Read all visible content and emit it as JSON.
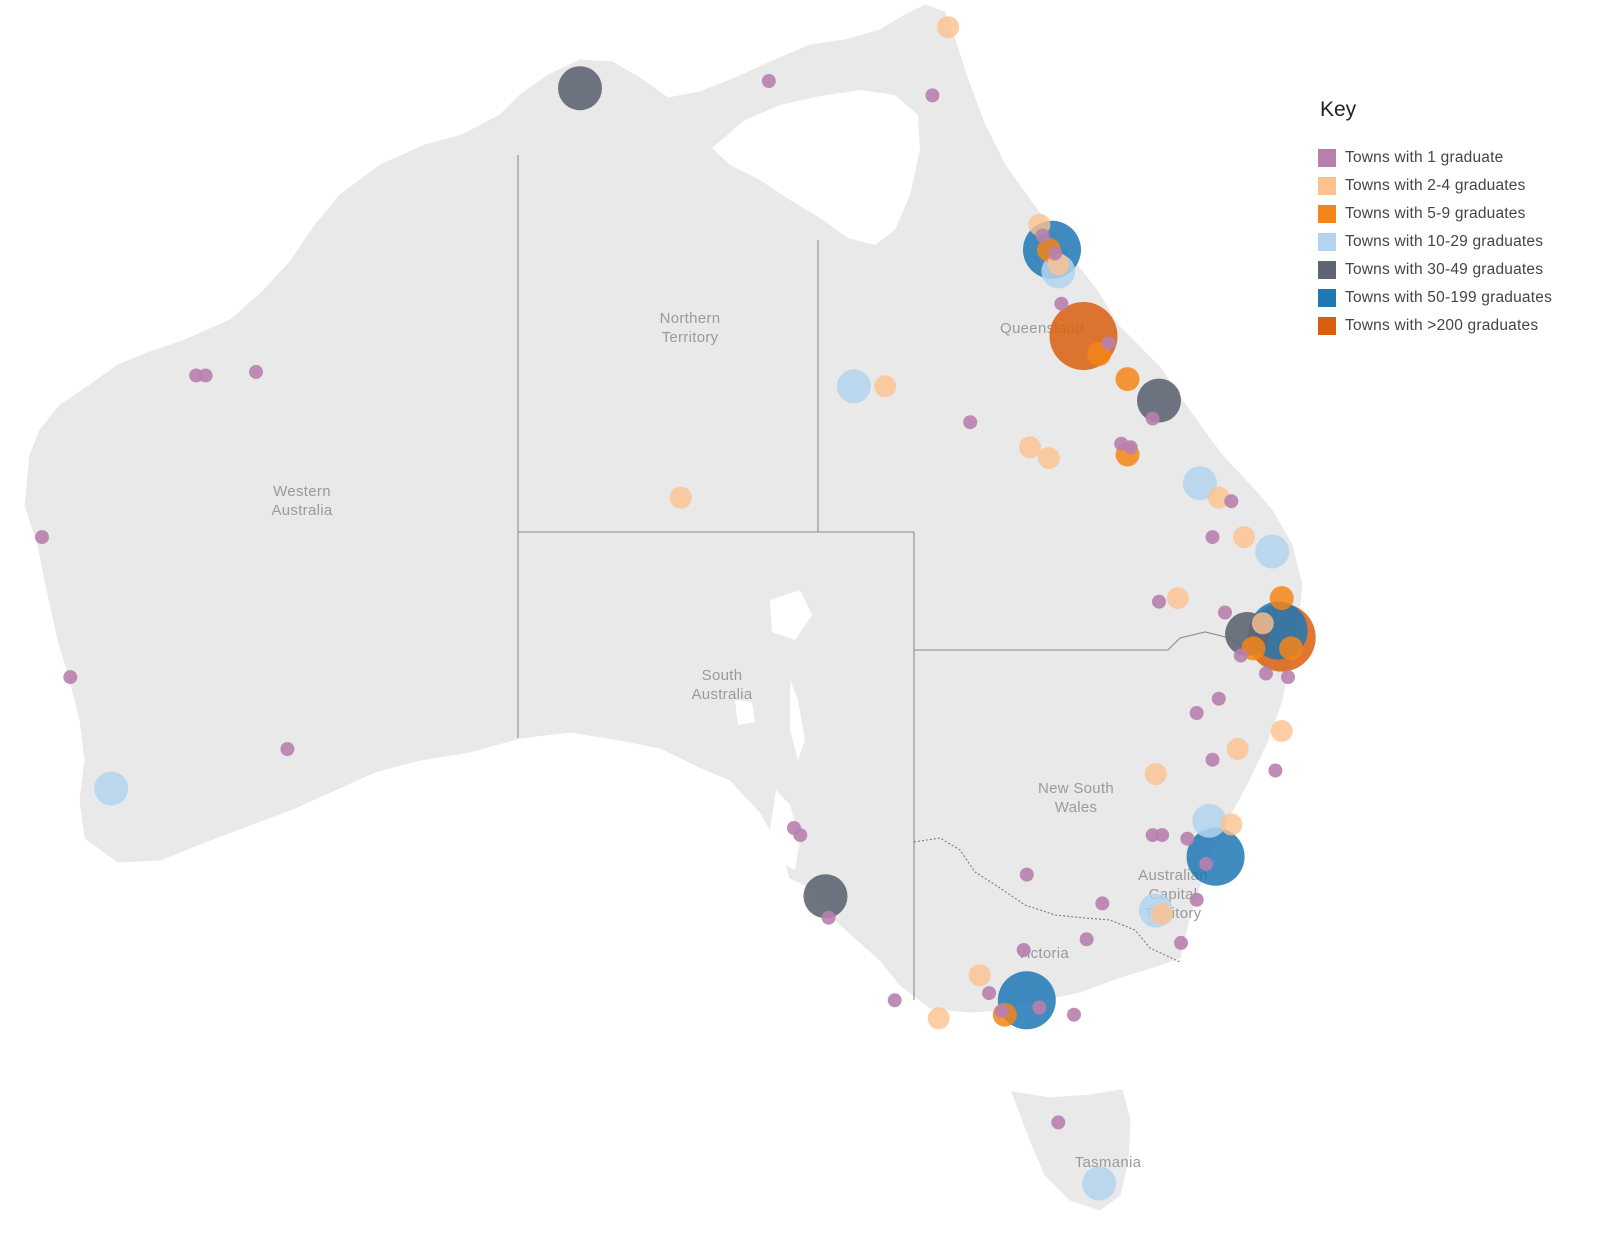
{
  "legend": {
    "title": "Key",
    "items": [
      {
        "label": "Towns with 1 graduate",
        "color": "#b87fae"
      },
      {
        "label": "Towns with 2-4 graduates",
        "color": "#fcc28e"
      },
      {
        "label": "Towns with 5-9 graduates",
        "color": "#f58518"
      },
      {
        "label": "Towns with 10-29 graduates",
        "color": "#b3d3ee"
      },
      {
        "label": "Towns with 30-49 graduates",
        "color": "#5f6573"
      },
      {
        "label": "Towns with 50-199 graduates",
        "color": "#1f77b4"
      },
      {
        "label": "Towns with >200 graduates",
        "color": "#d95f0e"
      }
    ]
  },
  "regions": {
    "wa": [
      "Western",
      "Australia"
    ],
    "nt": [
      "Northern",
      "Territory"
    ],
    "qld": [
      "Queensland"
    ],
    "sa": [
      "South",
      "Australia"
    ],
    "nsw": [
      "New South",
      "Wales"
    ],
    "act": [
      "Australian",
      "Capital",
      "Territory"
    ],
    "vic": [
      "Victoria"
    ],
    "tas": [
      "Tasmania"
    ]
  },
  "chart_data": {
    "type": "scatter",
    "description_units": "graduate count category per town (category index into legend.items)",
    "towns": [
      {
        "lon": 130.8,
        "lat": -12.4,
        "cat": 4
      },
      {
        "lon": 151.0,
        "lat": -33.8,
        "cat": 5
      },
      {
        "lon": 145.0,
        "lat": -37.8,
        "cat": 5
      },
      {
        "lon": 153.0,
        "lat": -27.5,
        "cat": 5
      },
      {
        "lon": 145.8,
        "lat": -16.9,
        "cat": 5
      },
      {
        "lon": 146.8,
        "lat": -19.3,
        "cat": 6
      },
      {
        "lon": 153.1,
        "lat": -27.7,
        "cat": 6
      },
      {
        "lon": 138.6,
        "lat": -34.9,
        "cat": 4
      },
      {
        "lon": 149.2,
        "lat": -21.1,
        "cat": 4
      },
      {
        "lon": 152.0,
        "lat": -27.6,
        "cat": 4
      },
      {
        "lon": 115.9,
        "lat": -31.9,
        "cat": 3
      },
      {
        "lon": 139.5,
        "lat": -20.7,
        "cat": 3
      },
      {
        "lon": 147.3,
        "lat": -42.9,
        "cat": 3
      },
      {
        "lon": 149.1,
        "lat": -35.3,
        "cat": 3
      },
      {
        "lon": 150.5,
        "lat": -23.4,
        "cat": 3
      },
      {
        "lon": 152.8,
        "lat": -25.3,
        "cat": 3
      },
      {
        "lon": 146.0,
        "lat": -17.5,
        "cat": 3
      },
      {
        "lon": 150.8,
        "lat": -32.8,
        "cat": 3
      },
      {
        "lon": 144.3,
        "lat": -38.2,
        "cat": 2
      },
      {
        "lon": 148.2,
        "lat": -20.5,
        "cat": 2
      },
      {
        "lon": 148.2,
        "lat": -22.6,
        "cat": 2
      },
      {
        "lon": 153.1,
        "lat": -26.6,
        "cat": 2
      },
      {
        "lon": 153.4,
        "lat": -28.0,
        "cat": 2
      },
      {
        "lon": 152.2,
        "lat": -28.0,
        "cat": 2
      },
      {
        "lon": 147.3,
        "lat": -19.8,
        "cat": 2
      },
      {
        "lon": 145.7,
        "lat": -16.9,
        "cat": 2
      },
      {
        "lon": 142.5,
        "lat": -10.7,
        "cat": 1
      },
      {
        "lon": 145.4,
        "lat": -16.2,
        "cat": 1
      },
      {
        "lon": 140.5,
        "lat": -20.7,
        "cat": 1
      },
      {
        "lon": 134.0,
        "lat": -23.8,
        "cat": 1
      },
      {
        "lon": 145.1,
        "lat": -22.4,
        "cat": 1
      },
      {
        "lon": 145.7,
        "lat": -22.7,
        "cat": 1
      },
      {
        "lon": 151.1,
        "lat": -23.8,
        "cat": 1
      },
      {
        "lon": 151.9,
        "lat": -24.9,
        "cat": 1
      },
      {
        "lon": 149.8,
        "lat": -26.6,
        "cat": 1
      },
      {
        "lon": 153.1,
        "lat": -30.3,
        "cat": 1
      },
      {
        "lon": 151.7,
        "lat": -30.8,
        "cat": 1
      },
      {
        "lon": 149.1,
        "lat": -31.5,
        "cat": 1
      },
      {
        "lon": 151.5,
        "lat": -32.9,
        "cat": 1
      },
      {
        "lon": 149.3,
        "lat": -35.4,
        "cat": 1
      },
      {
        "lon": 143.5,
        "lat": -37.1,
        "cat": 1
      },
      {
        "lon": 142.2,
        "lat": -38.3,
        "cat": 1
      },
      {
        "lon": 146.0,
        "lat": -17.3,
        "cat": 1
      },
      {
        "lon": 152.5,
        "lat": -27.3,
        "cat": 1
      },
      {
        "lon": 136.8,
        "lat": -12.2,
        "cat": 0
      },
      {
        "lon": 142.0,
        "lat": -12.6,
        "cat": 0
      },
      {
        "lon": 118.6,
        "lat": -20.4,
        "cat": 0
      },
      {
        "lon": 118.9,
        "lat": -20.4,
        "cat": 0
      },
      {
        "lon": 120.5,
        "lat": -20.3,
        "cat": 0
      },
      {
        "lon": 113.7,
        "lat": -24.9,
        "cat": 0
      },
      {
        "lon": 114.6,
        "lat": -28.8,
        "cat": 0
      },
      {
        "lon": 121.5,
        "lat": -30.8,
        "cat": 0
      },
      {
        "lon": 137.6,
        "lat": -33.0,
        "cat": 0
      },
      {
        "lon": 137.8,
        "lat": -33.2,
        "cat": 0
      },
      {
        "lon": 138.7,
        "lat": -35.5,
        "cat": 0
      },
      {
        "lon": 140.8,
        "lat": -37.8,
        "cat": 0
      },
      {
        "lon": 143.8,
        "lat": -37.6,
        "cat": 0
      },
      {
        "lon": 144.2,
        "lat": -38.1,
        "cat": 0
      },
      {
        "lon": 144.9,
        "lat": -36.4,
        "cat": 0
      },
      {
        "lon": 145.4,
        "lat": -38.0,
        "cat": 0
      },
      {
        "lon": 146.5,
        "lat": -38.2,
        "cat": 0
      },
      {
        "lon": 146.9,
        "lat": -36.1,
        "cat": 0
      },
      {
        "lon": 147.4,
        "lat": -35.1,
        "cat": 0
      },
      {
        "lon": 145.0,
        "lat": -34.3,
        "cat": 0
      },
      {
        "lon": 149.9,
        "lat": -36.2,
        "cat": 0
      },
      {
        "lon": 150.4,
        "lat": -35.0,
        "cat": 0
      },
      {
        "lon": 150.7,
        "lat": -34.0,
        "cat": 0
      },
      {
        "lon": 150.1,
        "lat": -33.3,
        "cat": 0
      },
      {
        "lon": 149.3,
        "lat": -33.2,
        "cat": 0
      },
      {
        "lon": 149.0,
        "lat": -33.2,
        "cat": 0
      },
      {
        "lon": 152.9,
        "lat": -31.4,
        "cat": 0
      },
      {
        "lon": 150.9,
        "lat": -31.1,
        "cat": 0
      },
      {
        "lon": 150.4,
        "lat": -29.8,
        "cat": 0
      },
      {
        "lon": 151.1,
        "lat": -29.4,
        "cat": 0
      },
      {
        "lon": 152.6,
        "lat": -28.7,
        "cat": 0
      },
      {
        "lon": 153.3,
        "lat": -28.8,
        "cat": 0
      },
      {
        "lon": 151.8,
        "lat": -28.2,
        "cat": 0
      },
      {
        "lon": 151.3,
        "lat": -27.0,
        "cat": 0
      },
      {
        "lon": 149.2,
        "lat": -26.7,
        "cat": 0
      },
      {
        "lon": 150.9,
        "lat": -24.9,
        "cat": 0
      },
      {
        "lon": 151.5,
        "lat": -23.9,
        "cat": 0
      },
      {
        "lon": 149.0,
        "lat": -21.6,
        "cat": 0
      },
      {
        "lon": 148.3,
        "lat": -22.4,
        "cat": 0
      },
      {
        "lon": 148.0,
        "lat": -22.3,
        "cat": 0
      },
      {
        "lon": 143.2,
        "lat": -21.7,
        "cat": 0
      },
      {
        "lon": 147.6,
        "lat": -19.5,
        "cat": 0
      },
      {
        "lon": 146.1,
        "lat": -18.4,
        "cat": 0
      },
      {
        "lon": 145.5,
        "lat": -16.5,
        "cat": 0
      },
      {
        "lon": 145.9,
        "lat": -17.0,
        "cat": 0
      },
      {
        "lon": 146.0,
        "lat": -41.2,
        "cat": 0
      }
    ]
  }
}
